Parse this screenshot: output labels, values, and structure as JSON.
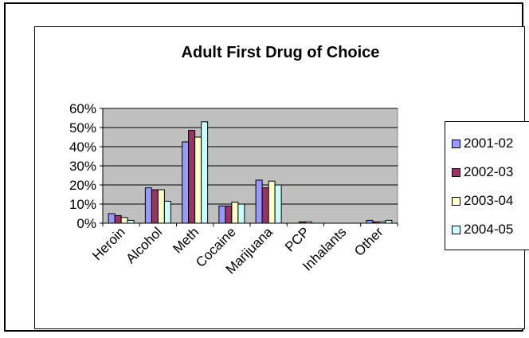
{
  "chart_data": {
    "type": "bar",
    "title": "Adult First Drug of Choice",
    "categories": [
      "Heroin",
      "Alcohol",
      "Meth",
      "Cocaine",
      "Marijuana",
      "PCP",
      "Inhalants",
      "Other"
    ],
    "series": [
      {
        "name": "2001-02",
        "color": "#9999ff",
        "values": [
          5,
          18.5,
          42.5,
          9,
          22.5,
          0,
          0,
          1.5
        ]
      },
      {
        "name": "2002-03",
        "color": "#993366",
        "values": [
          4,
          17.5,
          48.5,
          9,
          18.5,
          0.7,
          0,
          0.7
        ]
      },
      {
        "name": "2003-04",
        "color": "#ffffcc",
        "values": [
          3,
          17.5,
          45,
          11,
          22,
          0.7,
          0,
          0.7
        ]
      },
      {
        "name": "2004-05",
        "color": "#ccffff",
        "values": [
          1.5,
          11.5,
          53,
          10,
          20,
          0,
          0,
          1.5
        ]
      }
    ],
    "y_ticks": [
      "0%",
      "10%",
      "20%",
      "30%",
      "40%",
      "50%",
      "60%"
    ],
    "ylim": [
      0,
      60
    ],
    "plot_background": "#c0c0c0",
    "grid": true,
    "legend_position": "right"
  }
}
